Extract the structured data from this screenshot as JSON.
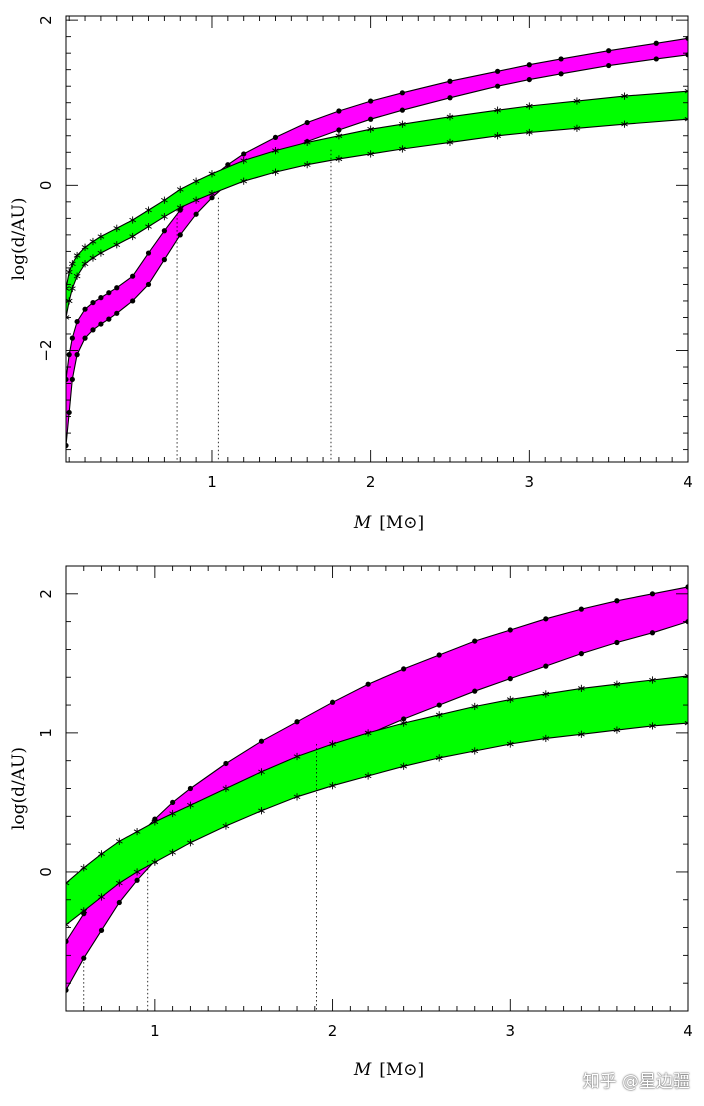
{
  "chart_data": [
    {
      "type": "area",
      "xlabel_var": "M",
      "xlabel_unit": "[M⊙]",
      "ylabel": "log(d/AU)",
      "xlim": [
        0.08,
        4.0
      ],
      "ylim": [
        -3.35,
        2.05
      ],
      "xticks": [
        1,
        2,
        3,
        4
      ],
      "yticks": [
        -2,
        0,
        2
      ],
      "ytick_labels": [
        "−2",
        "0",
        "2"
      ],
      "series": [
        {
          "color": "#ff00ff",
          "marker": "dot",
          "upper": {
            "x": [
              0.08,
              0.1,
              0.12,
              0.15,
              0.2,
              0.25,
              0.3,
              0.35,
              0.4,
              0.5,
              0.6,
              0.7,
              0.8,
              0.9,
              1.0,
              1.1,
              1.2,
              1.4,
              1.6,
              1.8,
              2.0,
              2.2,
              2.5,
              2.8,
              3.0,
              3.2,
              3.5,
              3.8,
              4.0
            ],
            "y": [
              -2.35,
              -2.05,
              -1.85,
              -1.65,
              -1.5,
              -1.42,
              -1.36,
              -1.3,
              -1.24,
              -1.1,
              -0.82,
              -0.55,
              -0.3,
              -0.08,
              0.1,
              0.25,
              0.38,
              0.58,
              0.76,
              0.9,
              1.02,
              1.12,
              1.26,
              1.38,
              1.46,
              1.53,
              1.63,
              1.72,
              1.78
            ]
          },
          "lower": {
            "x": [
              0.08,
              0.1,
              0.12,
              0.15,
              0.2,
              0.25,
              0.3,
              0.35,
              0.4,
              0.5,
              0.6,
              0.7,
              0.8,
              0.9,
              1.0,
              1.1,
              1.2,
              1.4,
              1.6,
              1.8,
              2.0,
              2.2,
              2.5,
              2.8,
              3.0,
              3.2,
              3.5,
              3.8,
              4.0
            ],
            "y": [
              -3.15,
              -2.75,
              -2.35,
              -2.05,
              -1.85,
              -1.75,
              -1.68,
              -1.62,
              -1.55,
              -1.4,
              -1.2,
              -0.9,
              -0.6,
              -0.35,
              -0.15,
              0.02,
              0.15,
              0.36,
              0.53,
              0.67,
              0.8,
              0.91,
              1.06,
              1.2,
              1.28,
              1.35,
              1.45,
              1.53,
              1.58
            ]
          }
        },
        {
          "color": "#00ff00",
          "marker": "star",
          "upper": {
            "x": [
              0.08,
              0.1,
              0.12,
              0.15,
              0.2,
              0.25,
              0.3,
              0.4,
              0.5,
              0.6,
              0.7,
              0.8,
              0.9,
              1.0,
              1.2,
              1.4,
              1.6,
              1.8,
              2.0,
              2.2,
              2.5,
              2.8,
              3.0,
              3.3,
              3.6,
              4.0
            ],
            "y": [
              -1.25,
              -1.05,
              -0.95,
              -0.85,
              -0.75,
              -0.68,
              -0.62,
              -0.52,
              -0.42,
              -0.3,
              -0.18,
              -0.05,
              0.05,
              0.14,
              0.3,
              0.42,
              0.52,
              0.6,
              0.68,
              0.74,
              0.83,
              0.91,
              0.96,
              1.02,
              1.08,
              1.14
            ]
          },
          "lower": {
            "x": [
              0.08,
              0.1,
              0.12,
              0.15,
              0.2,
              0.25,
              0.3,
              0.4,
              0.5,
              0.6,
              0.7,
              0.8,
              0.9,
              1.0,
              1.2,
              1.4,
              1.6,
              1.8,
              2.0,
              2.2,
              2.5,
              2.8,
              3.0,
              3.3,
              3.6,
              4.0
            ],
            "y": [
              -1.6,
              -1.4,
              -1.25,
              -1.1,
              -0.95,
              -0.88,
              -0.82,
              -0.72,
              -0.62,
              -0.5,
              -0.38,
              -0.27,
              -0.18,
              -0.1,
              0.05,
              0.16,
              0.25,
              0.32,
              0.38,
              0.44,
              0.52,
              0.6,
              0.64,
              0.69,
              0.74,
              0.8
            ]
          }
        }
      ],
      "vlines": [
        {
          "x": 0.78,
          "y_top": -0.3
        },
        {
          "x": 1.04,
          "y_top": -0.15
        },
        {
          "x": 1.75,
          "y_top": 0.43
        }
      ]
    },
    {
      "type": "area",
      "xlabel_var": "M",
      "xlabel_unit": "[M⊙]",
      "ylabel": "log(d/AU)",
      "xlim": [
        0.5,
        4.0
      ],
      "ylim": [
        -1.0,
        2.2
      ],
      "xticks": [
        1,
        2,
        3,
        4
      ],
      "yticks": [
        0,
        1,
        2
      ],
      "ytick_labels": [
        "0",
        "1",
        "2"
      ],
      "series": [
        {
          "color": "#ff00ff",
          "marker": "dot",
          "upper": {
            "x": [
              0.5,
              0.6,
              0.7,
              0.8,
              0.9,
              1.0,
              1.1,
              1.2,
              1.4,
              1.6,
              1.8,
              2.0,
              2.2,
              2.4,
              2.6,
              2.8,
              3.0,
              3.2,
              3.4,
              3.6,
              3.8,
              4.0
            ],
            "y": [
              -0.5,
              -0.3,
              -0.08,
              0.1,
              0.25,
              0.38,
              0.5,
              0.6,
              0.78,
              0.94,
              1.08,
              1.22,
              1.35,
              1.46,
              1.56,
              1.66,
              1.74,
              1.82,
              1.89,
              1.95,
              2.0,
              2.05
            ]
          },
          "lower": {
            "x": [
              0.5,
              0.6,
              0.7,
              0.8,
              0.9,
              1.0,
              1.1,
              1.2,
              1.4,
              1.6,
              1.8,
              2.0,
              2.2,
              2.4,
              2.6,
              2.8,
              3.0,
              3.2,
              3.4,
              3.6,
              3.8,
              4.0
            ],
            "y": [
              -0.85,
              -0.62,
              -0.42,
              -0.22,
              -0.06,
              0.08,
              0.2,
              0.3,
              0.48,
              0.63,
              0.76,
              0.88,
              0.99,
              1.1,
              1.2,
              1.3,
              1.39,
              1.48,
              1.57,
              1.65,
              1.72,
              1.8
            ]
          }
        },
        {
          "color": "#00ff00",
          "marker": "star",
          "upper": {
            "x": [
              0.5,
              0.6,
              0.7,
              0.8,
              0.9,
              1.0,
              1.1,
              1.2,
              1.4,
              1.6,
              1.8,
              2.0,
              2.2,
              2.4,
              2.6,
              2.8,
              3.0,
              3.2,
              3.4,
              3.6,
              3.8,
              4.0
            ],
            "y": [
              -0.08,
              0.03,
              0.13,
              0.22,
              0.29,
              0.36,
              0.42,
              0.48,
              0.6,
              0.72,
              0.83,
              0.92,
              1.0,
              1.07,
              1.13,
              1.19,
              1.24,
              1.28,
              1.32,
              1.35,
              1.38,
              1.41
            ]
          },
          "lower": {
            "x": [
              0.5,
              0.6,
              0.7,
              0.8,
              0.9,
              1.0,
              1.1,
              1.2,
              1.4,
              1.6,
              1.8,
              2.0,
              2.2,
              2.4,
              2.6,
              2.8,
              3.0,
              3.2,
              3.4,
              3.6,
              3.8,
              4.0
            ],
            "y": [
              -0.38,
              -0.28,
              -0.18,
              -0.08,
              0.0,
              0.07,
              0.14,
              0.21,
              0.33,
              0.44,
              0.54,
              0.62,
              0.69,
              0.76,
              0.82,
              0.87,
              0.92,
              0.96,
              0.99,
              1.02,
              1.05,
              1.07
            ]
          }
        }
      ],
      "vlines": [
        {
          "x": 0.6,
          "y_top": -0.62
        },
        {
          "x": 0.96,
          "y_top": 0.08
        },
        {
          "x": 1.91,
          "y_top": 0.92
        }
      ]
    }
  ],
  "watermark": "知乎 @星边疆"
}
